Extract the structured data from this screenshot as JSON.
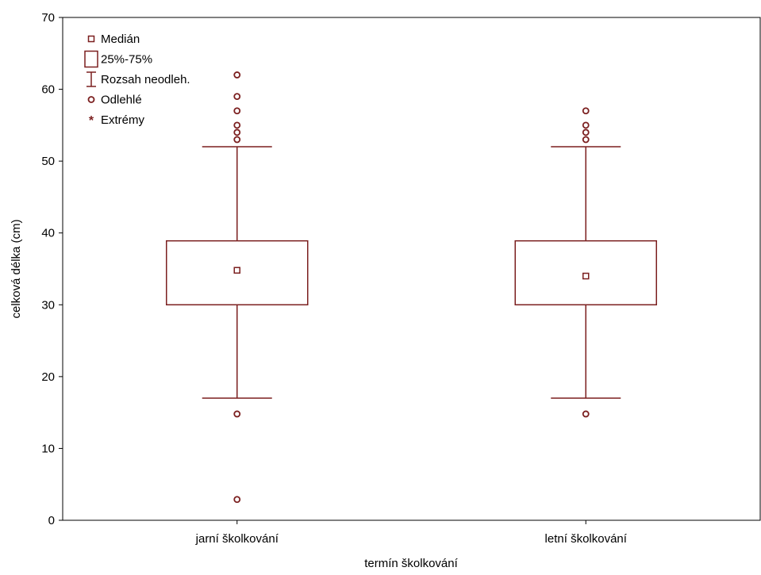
{
  "chart_data": {
    "type": "boxplot",
    "xlabel": "termín školkování",
    "ylabel": "celková délka (cm)",
    "ylim": [
      0,
      70
    ],
    "yticks": [
      0,
      10,
      20,
      30,
      40,
      50,
      60,
      70
    ],
    "categories": [
      "jarní školkování",
      "letní školkování"
    ],
    "boxes": [
      {
        "category": "jarní školkování",
        "median": 34.8,
        "q1": 30,
        "q3": 38.9,
        "whisker_low": 17,
        "whisker_high": 52,
        "outliers": [
          53,
          54,
          55,
          57,
          59,
          62,
          14.8,
          2.9
        ]
      },
      {
        "category": "letní školkování",
        "median": 34,
        "q1": 30,
        "q3": 38.9,
        "whisker_low": 17,
        "whisker_high": 52,
        "outliers": [
          53,
          54,
          55,
          57,
          14.8
        ]
      }
    ],
    "legend": {
      "placement": "top-left",
      "items": [
        {
          "key": "median",
          "label": "Medián"
        },
        {
          "key": "box",
          "label": "25%-75%"
        },
        {
          "key": "whisker",
          "label": "Rozsah neodleh."
        },
        {
          "key": "outlier",
          "label": "Odlehlé"
        },
        {
          "key": "extreme",
          "label": "Extrémy"
        }
      ]
    },
    "color": "#7b1f1f",
    "grid": false
  }
}
